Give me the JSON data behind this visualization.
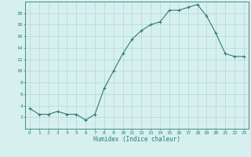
{
  "x": [
    0,
    1,
    2,
    3,
    4,
    5,
    6,
    7,
    8,
    9,
    10,
    11,
    12,
    13,
    14,
    15,
    16,
    17,
    18,
    19,
    20,
    21,
    22,
    23
  ],
  "y": [
    3.5,
    2.5,
    2.5,
    3.0,
    2.5,
    2.5,
    1.5,
    2.5,
    7.0,
    10.0,
    13.0,
    15.5,
    17.0,
    18.0,
    18.5,
    20.5,
    20.5,
    21.0,
    21.5,
    19.5,
    16.5,
    13.0,
    12.5,
    12.5
  ],
  "xlim": [
    -0.5,
    23.5
  ],
  "ylim": [
    0,
    22
  ],
  "yticks": [
    2,
    4,
    6,
    8,
    10,
    12,
    14,
    16,
    18,
    20
  ],
  "xticks": [
    0,
    1,
    2,
    3,
    4,
    5,
    6,
    7,
    8,
    9,
    10,
    11,
    12,
    13,
    14,
    15,
    16,
    17,
    18,
    19,
    20,
    21,
    22,
    23
  ],
  "xlabel": "Humidex (Indice chaleur)",
  "line_color": "#2e7d6e",
  "marker": "+",
  "bg_color": "#d6f0f0",
  "grid_color": "#b8d4d4"
}
